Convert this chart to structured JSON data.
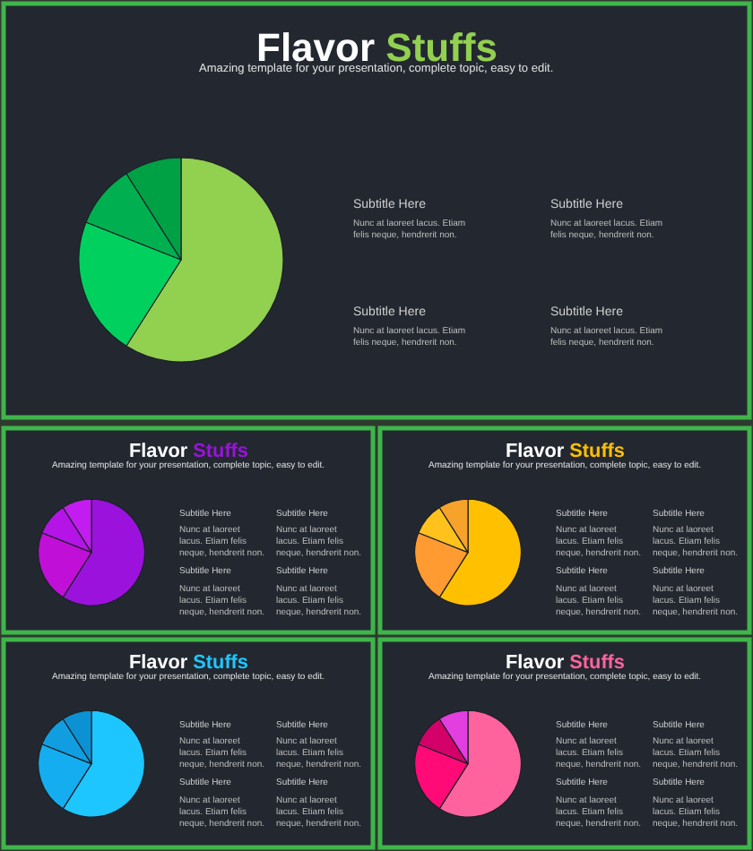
{
  "chart_data": [
    {
      "type": "pie",
      "title": "Flavor Stuffs",
      "subtitle": "Amazing template for your presentation, complete topic, easy to edit.",
      "categories": [
        null,
        null,
        null,
        null
      ],
      "values": [
        59,
        22,
        10,
        9
      ],
      "colors": [
        "#92d050",
        "#00d15e",
        "#00b050",
        "#00a045"
      ],
      "legend": false,
      "annotations": [
        "Subtitle Here",
        "Nunc at laoreet lacus. Etiam felis neque, hendrerit non.",
        "Subtitle Here",
        "Nunc at laoreet lacus. Etiam felis neque, hendrerit non.",
        "Subtitle Here",
        "Nunc at laoreet lacus. Etiam felis neque, hendrerit non.",
        "Subtitle Here",
        "Nunc at laoreet lacus. Etiam felis neque, hendrerit non."
      ]
    },
    {
      "type": "pie",
      "title": "Flavor Stuffs",
      "subtitle": "Amazing template for your presentation, complete topic, easy to edit.",
      "categories": [
        null,
        null,
        null,
        null
      ],
      "values": [
        59,
        22,
        10,
        9
      ],
      "colors": [
        "#9b12dd",
        "#c010d8",
        "#b414e6",
        "#c21cf0"
      ],
      "legend": false,
      "annotations": [
        "Subtitle Here",
        "Nunc at laoreet lacus. Etiam felis neque, hendrerit non.",
        "Subtitle Here",
        "Nunc at laoreet lacus. Etiam felis neque, hendrerit non.",
        "Subtitle Here",
        "Nunc at laoreet lacus. Etiam felis neque, hendrerit non.",
        "Subtitle Here",
        "Nunc at laoreet lacus. Etiam felis neque, hendrerit non."
      ]
    },
    {
      "type": "pie",
      "title": "Flavor Stuffs",
      "subtitle": "Amazing template for your presentation, complete topic, easy to edit.",
      "categories": [
        null,
        null,
        null,
        null
      ],
      "values": [
        59,
        22,
        10,
        9
      ],
      "colors": [
        "#ffc000",
        "#ff9b30",
        "#ffc21c",
        "#f7a22a"
      ],
      "legend": false,
      "annotations": [
        "Subtitle Here",
        "Nunc at laoreet lacus. Etiam felis neque, hendrerit non.",
        "Subtitle Here",
        "Nunc at laoreet lacus. Etiam felis neque, hendrerit non.",
        "Subtitle Here",
        "Nunc at laoreet lacus. Etiam felis neque, hendrerit non.",
        "Subtitle Here",
        "Nunc at laoreet lacus. Etiam felis neque, hendrerit non."
      ]
    },
    {
      "type": "pie",
      "title": "Flavor Stuffs",
      "subtitle": "Amazing template for your presentation, complete topic, easy to edit.",
      "categories": [
        null,
        null,
        null,
        null
      ],
      "values": [
        59,
        22,
        10,
        9
      ],
      "colors": [
        "#1ec6ff",
        "#14aef0",
        "#109ee0",
        "#0c92d2"
      ],
      "legend": false,
      "annotations": [
        "Subtitle Here",
        "Nunc at laoreet lacus. Etiam felis neque, hendrerit non.",
        "Subtitle Here",
        "Nunc at laoreet lacus. Etiam felis neque, hendrerit non.",
        "Subtitle Here",
        "Nunc at laoreet lacus. Etiam felis neque, hendrerit non.",
        "Subtitle Here",
        "Nunc at laoreet lacus. Etiam felis neque, hendrerit non."
      ]
    },
    {
      "type": "pie",
      "title": "Flavor Stuffs",
      "subtitle": "Amazing template for your presentation, complete topic, easy to edit.",
      "categories": [
        null,
        null,
        null,
        null
      ],
      "values": [
        59,
        22,
        10,
        9
      ],
      "colors": [
        "#ff639e",
        "#ff0a76",
        "#d4006a",
        "#e23ee0"
      ],
      "legend": false,
      "annotations": [
        "Subtitle Here",
        "Nunc at laoreet lacus. Etiam felis neque, hendrerit non.",
        "Subtitle Here",
        "Nunc at laoreet lacus. Etiam felis neque, hendrerit non.",
        "Subtitle Here",
        "Nunc at laoreet lacus. Etiam felis neque, hendrerit non.",
        "Subtitle Here",
        "Nunc at laoreet lacus. Etiam felis neque, hendrerit non."
      ]
    }
  ]
}
